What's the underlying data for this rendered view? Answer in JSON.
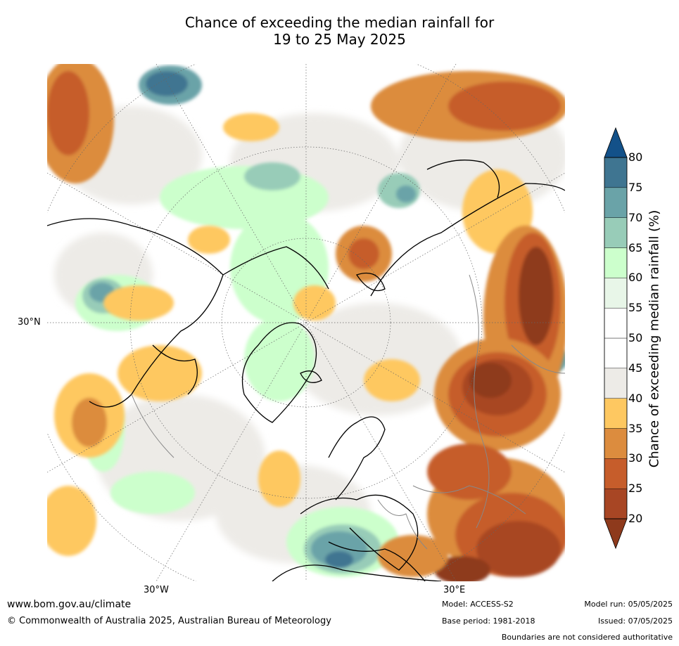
{
  "title": {
    "line1": "Chance of exceeding the median rainfall for",
    "line2": "19 to 25 May 2025"
  },
  "map": {
    "projection": "north-polar-stereographic",
    "lat_labels": {
      "lat_30n": "30°N",
      "lon_30w": "30°W",
      "lon_30e": "30°E"
    }
  },
  "colorbar": {
    "label": "Chance of exceeding median rainfall (%)",
    "ticks": [
      "20",
      "25",
      "30",
      "35",
      "40",
      "45",
      "50",
      "55",
      "60",
      "65",
      "70",
      "75",
      "80"
    ],
    "colors": [
      "#8e3a1c",
      "#a84624",
      "#c65d2b",
      "#dc8c3e",
      "#fec861",
      "#edebe7",
      "#ffffff",
      "#ffffff",
      "#e8f6e8",
      "#ccffcc",
      "#98ccb8",
      "#6aa3a8",
      "#3f7591",
      "#135189"
    ]
  },
  "footer": {
    "url": "www.bom.gov.au/climate",
    "copyright": "© Commonwealth of Australia 2025, Australian Bureau of Meteorology",
    "model": "Model: ACCESS-S2",
    "base_period": "Base period: 1981-2018",
    "model_run": "Model run: 05/05/2025",
    "issued": "Issued: 07/05/2025",
    "boundaries": "Boundaries are not considered authoritative"
  }
}
